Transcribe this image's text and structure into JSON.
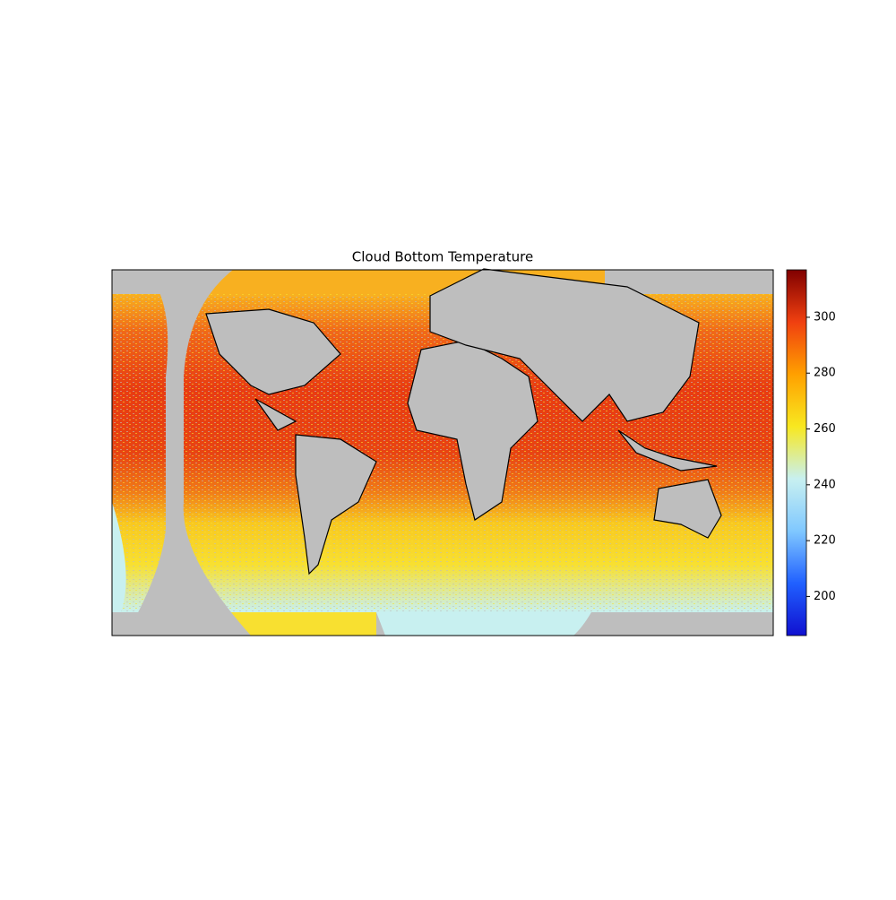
{
  "chart_data": {
    "type": "map",
    "title": "Cloud Bottom Temperature",
    "colorbar": {
      "lim": [
        186,
        317
      ],
      "ticks": [
        200,
        220,
        240,
        260,
        280,
        300
      ],
      "colors": [
        "#1010d0",
        "#2060ff",
        "#80c8ff",
        "#c8f0f0",
        "#f8e820",
        "#ffa000",
        "#f04010",
        "#800000"
      ]
    }
  }
}
